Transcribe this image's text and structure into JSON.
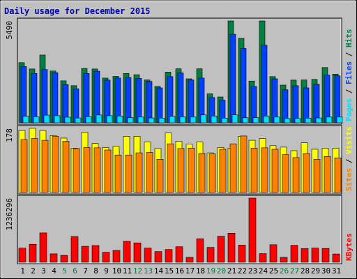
{
  "colors": {
    "frame_bg": "#c0c0c0",
    "panel_bg": "#c0c0c0",
    "title": "#0000c0",
    "hits": "#008040",
    "files": "#0040ff",
    "pages": "#00e0ff",
    "visits": "#ffff00",
    "sites": "#ff8000",
    "kbytes": "#ff0000",
    "weekend_day": "#008040",
    "weekday": "#000000"
  },
  "chart_data": {
    "type": "bar",
    "title": "Daily usage for December 2015",
    "categories": [
      "1",
      "2",
      "3",
      "4",
      "5",
      "6",
      "7",
      "8",
      "9",
      "10",
      "11",
      "12",
      "13",
      "14",
      "15",
      "16",
      "17",
      "18",
      "19",
      "20",
      "21",
      "22",
      "23",
      "24",
      "25",
      "26",
      "27",
      "28",
      "29",
      "30",
      "31"
    ],
    "weekend_days": [
      "5",
      "6",
      "12",
      "13",
      "19",
      "20",
      "26",
      "27"
    ],
    "panels": [
      {
        "id": "hits_files_pages",
        "ymax_label": "5490",
        "ylim": [
          0,
          5490
        ],
        "side_labels": [
          "Pages",
          "Files",
          "Hits"
        ],
        "series": [
          {
            "name": "Hits",
            "color_key": "hits",
            "values": [
              3240,
              2900,
              3650,
              2790,
              2260,
              2000,
              2930,
              2900,
              2410,
              2500,
              2660,
              2590,
              2310,
              1960,
              2730,
              2910,
              2370,
              2910,
              1560,
              1390,
              5490,
              4550,
              2250,
              5490,
              2490,
              2030,
              2300,
              2310,
              2340,
              2980,
              2620
            ]
          },
          {
            "name": "Files",
            "color_key": "files",
            "values": [
              3030,
              2660,
              2870,
              2700,
              2060,
              1830,
              2660,
              2780,
              2300,
              2410,
              2440,
              2390,
              2230,
              1880,
              2490,
              2690,
              2310,
              2410,
              1360,
              1220,
              4770,
              4010,
              1960,
              4180,
              2370,
              1780,
              2000,
              1880,
              2080,
              2570,
              2530
            ]
          },
          {
            "name": "Pages",
            "color_key": "pages",
            "values": [
              350,
              320,
              410,
              380,
              300,
              260,
              330,
              420,
              380,
              360,
              280,
              310,
              260,
              250,
              350,
              320,
              310,
              420,
              360,
              250,
              430,
              270,
              280,
              360,
              310,
              230,
              230,
              250,
              260,
              310,
              310
            ]
          }
        ]
      },
      {
        "id": "visits_sites",
        "ymax_label": "178",
        "ylim": [
          0,
          178
        ],
        "side_labels": [
          "Sites",
          "Visits"
        ],
        "series": [
          {
            "name": "Visits",
            "color_key": "visits",
            "values": [
              172,
              178,
              172,
              158,
              151,
              123,
              167,
              136,
              125,
              128,
              156,
              156,
              140,
              122,
              165,
              142,
              134,
              140,
              110,
              125,
              123,
              156,
              145,
              150,
              130,
              126,
              116,
              138,
              120,
              123,
              123
            ]
          },
          {
            "name": "Sites",
            "color_key": "sites",
            "values": [
              147,
              150,
              145,
              156,
              142,
              122,
              125,
              124,
              118,
              104,
              104,
              110,
              111,
              92,
              135,
              122,
              123,
              108,
              107,
              120,
              135,
              157,
              123,
              124,
              120,
              105,
              97,
              108,
              92,
              100,
              96
            ]
          }
        ]
      },
      {
        "id": "kbytes",
        "ymax_label": "1236296",
        "ylim": [
          0,
          1236296
        ],
        "side_labels": [
          "KBytes"
        ],
        "series": [
          {
            "name": "KBytes",
            "color_key": "kbytes",
            "values": [
              273000,
              347000,
              566000,
              162000,
              133000,
              495000,
              308000,
              323000,
              192000,
              228000,
              403000,
              373000,
              273000,
              205000,
              246000,
              299000,
              95000,
              453000,
              286000,
              503000,
              561000,
              331000,
              1236296,
              167000,
              339000,
              95000,
              326000,
              264000,
              273000,
              266000,
              160000
            ]
          }
        ]
      }
    ]
  }
}
